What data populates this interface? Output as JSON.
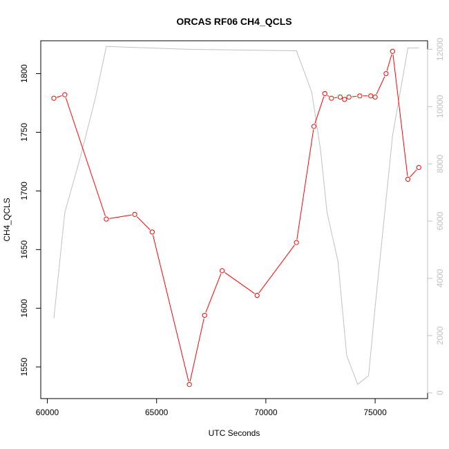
{
  "chart_data": {
    "type": "line",
    "title": "ORCAS RF06 CH4_QCLS",
    "xlabel": "UTC Seconds",
    "ylabel": "CH4_QCLS",
    "xlim": [
      59700,
      77400
    ],
    "ylim": [
      1523,
      1828
    ],
    "y2lim": [
      -200,
      12300
    ],
    "x_ticks": [
      60000,
      65000,
      70000,
      75000
    ],
    "y_ticks": [
      1550,
      1600,
      1650,
      1700,
      1750,
      1800
    ],
    "y2_ticks": [
      0,
      2000,
      4000,
      6000,
      8000,
      10000,
      12000
    ],
    "grid": false,
    "series": [
      {
        "axis": "left",
        "style": "line+points",
        "color": "#ff0000",
        "x": [
          60300,
          60800,
          62700,
          64000,
          64800,
          66500,
          67200,
          68000,
          69600,
          71400,
          72200,
          72700,
          73000,
          73400,
          73600,
          73800,
          74300,
          74800,
          75000,
          75500,
          75800,
          76500,
          77000
        ],
        "y": [
          1779,
          1782,
          1676,
          1680,
          1665,
          1535,
          1594,
          1632,
          1611,
          1656,
          1755,
          1783,
          1779,
          1780,
          1778,
          1780,
          1781,
          1781,
          1780,
          1800,
          1819,
          1710,
          1720
        ]
      },
      {
        "axis": "right",
        "style": "line",
        "color": "#c0c0c0",
        "x": [
          60300,
          60800,
          61500,
          62200,
          62700,
          66500,
          71400,
          72100,
          72500,
          72800,
          73300,
          73700,
          74200,
          74700,
          75000,
          75800,
          76500,
          77000
        ],
        "y": [
          2600,
          6300,
          8200,
          10300,
          12100,
          12000,
          11950,
          10500,
          8500,
          6300,
          4600,
          1300,
          300,
          600,
          3000,
          9000,
          12050,
          12050
        ]
      }
    ]
  }
}
